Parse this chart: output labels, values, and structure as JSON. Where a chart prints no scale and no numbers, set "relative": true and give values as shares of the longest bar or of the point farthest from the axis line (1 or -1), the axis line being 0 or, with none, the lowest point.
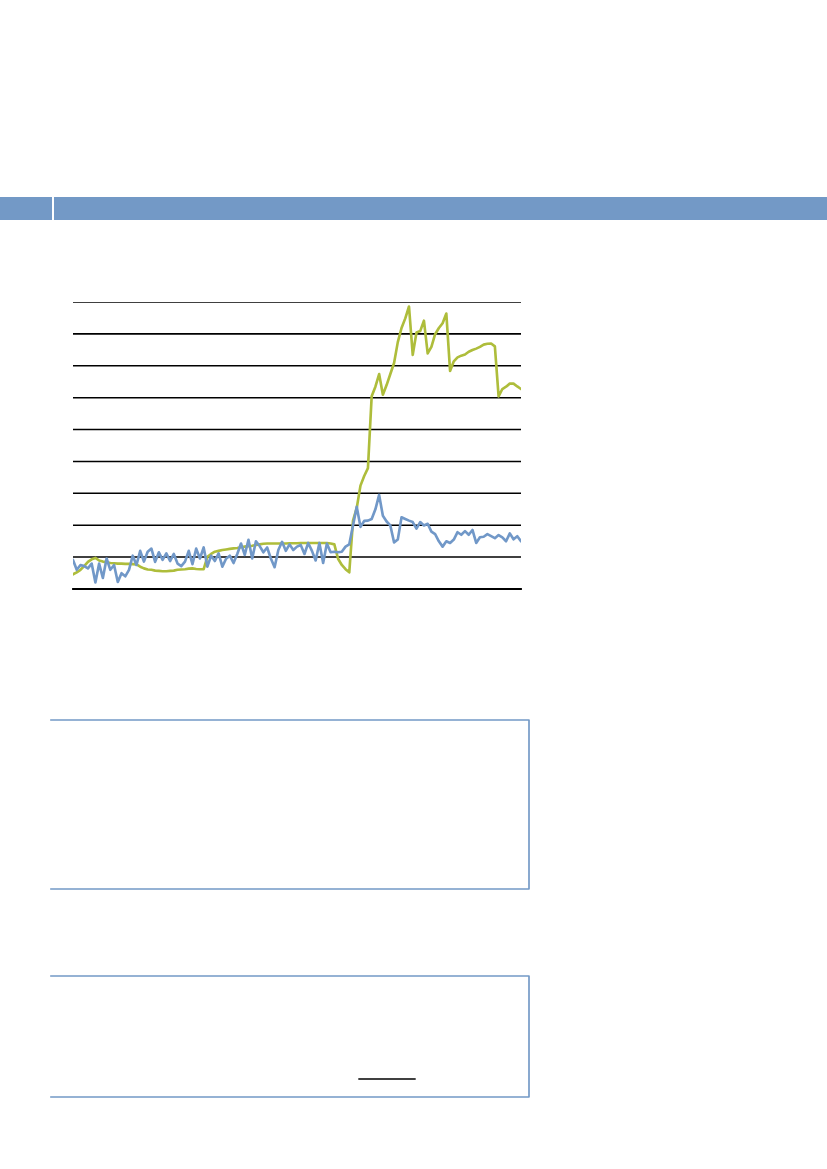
{
  "chart_data": {
    "type": "line",
    "relative": true,
    "grid": "y",
    "line_style": "solid",
    "marker": "none",
    "categories": [
      null,
      null,
      null,
      null,
      null,
      null,
      null,
      null,
      null,
      null,
      null,
      null,
      null,
      null,
      null,
      null,
      null,
      null,
      null,
      null,
      null,
      null,
      null,
      null,
      null,
      null,
      null,
      null,
      null,
      null,
      null,
      null,
      null,
      null,
      null,
      null,
      null,
      null,
      null,
      null,
      null,
      null,
      null,
      null,
      null,
      null,
      null,
      null,
      null,
      null,
      null,
      null,
      null,
      null,
      null,
      null,
      null,
      null,
      null,
      null,
      null,
      null,
      null,
      null,
      null,
      null,
      null,
      null,
      null,
      null,
      null,
      null,
      null,
      null,
      null,
      null,
      null,
      null,
      null,
      null,
      null,
      null,
      null,
      null,
      null,
      null,
      null,
      null,
      null,
      null,
      null,
      null,
      null,
      null,
      null,
      null,
      null,
      null,
      null,
      null,
      null,
      null,
      null,
      null,
      null,
      null,
      null,
      null,
      null,
      null,
      null,
      null,
      null,
      null,
      null,
      null,
      null,
      null,
      null,
      null,
      null
    ],
    "series": [
      {
        "color": "#aebd3b",
        "values": [
          0.052,
          0.059,
          0.068,
          0.081,
          0.096,
          0.105,
          0.11,
          0.101,
          0.097,
          0.095,
          0.092,
          0.091,
          0.09,
          0.09,
          0.089,
          0.089,
          0.088,
          0.087,
          0.079,
          0.073,
          0.069,
          0.068,
          0.065,
          0.064,
          0.063,
          0.063,
          0.064,
          0.065,
          0.068,
          0.069,
          0.07,
          0.072,
          0.073,
          0.071,
          0.07,
          0.07,
          0.114,
          0.124,
          0.132,
          0.135,
          0.138,
          0.14,
          0.142,
          0.144,
          0.145,
          0.148,
          0.15,
          0.152,
          0.153,
          0.156,
          0.158,
          0.16,
          0.161,
          0.161,
          0.161,
          0.161,
          0.161,
          0.161,
          0.162,
          0.162,
          0.162,
          0.163,
          0.163,
          0.163,
          0.163,
          0.163,
          0.163,
          0.163,
          0.163,
          0.161,
          0.158,
          0.107,
          0.085,
          0.07,
          0.059,
          0.242,
          0.287,
          0.366,
          0.4,
          0.428,
          0.682,
          0.716,
          0.761,
          0.688,
          0.722,
          0.761,
          0.8,
          0.874,
          0.924,
          0.958,
          1,
          0.829,
          0.908,
          0.913,
          0.95,
          0.834,
          0.857,
          0.902,
          0.924,
          0.941,
          0.975,
          0.772,
          0.806,
          0.82,
          0.826,
          0.83,
          0.84,
          0.846,
          0.851,
          0.857,
          0.865,
          0.868,
          0.869,
          0.859,
          0.682,
          0.708,
          0.716,
          0.727,
          0.727,
          0.717,
          0.708
        ]
      },
      {
        "color": "#7198c8",
        "values": [
          0.103,
          0.068,
          0.085,
          0.081,
          0.073,
          0.09,
          0.023,
          0.09,
          0.039,
          0.108,
          0.068,
          0.085,
          0.025,
          0.056,
          0.045,
          0.068,
          0.118,
          0.085,
          0.135,
          0.097,
          0.132,
          0.143,
          0.096,
          0.13,
          0.103,
          0.126,
          0.099,
          0.124,
          0.09,
          0.081,
          0.097,
          0.135,
          0.088,
          0.143,
          0.108,
          0.147,
          0.079,
          0.118,
          0.099,
          0.126,
          0.079,
          0.107,
          0.118,
          0.092,
          0.124,
          0.161,
          0.121,
          0.174,
          0.108,
          0.169,
          0.152,
          0.13,
          0.147,
          0.108,
          0.077,
          0.138,
          0.167,
          0.135,
          0.158,
          0.138,
          0.15,
          0.156,
          0.124,
          0.163,
          0.135,
          0.101,
          0.163,
          0.092,
          0.161,
          0.13,
          0.132,
          0.13,
          0.132,
          0.15,
          0.158,
          0.225,
          0.291,
          0.22,
          0.241,
          0.242,
          0.248,
          0.282,
          0.333,
          0.259,
          0.239,
          0.225,
          0.165,
          0.175,
          0.254,
          0.248,
          0.242,
          0.237,
          0.214,
          0.237,
          0.225,
          0.231,
          0.203,
          0.194,
          0.169,
          0.15,
          0.169,
          0.163,
          0.175,
          0.201,
          0.192,
          0.205,
          0.192,
          0.209,
          0.163,
          0.183,
          0.185,
          0.194,
          0.187,
          0.18,
          0.191,
          0.183,
          0.169,
          0.197,
          0.176,
          0.187,
          0.169
        ]
      }
    ]
  }
}
